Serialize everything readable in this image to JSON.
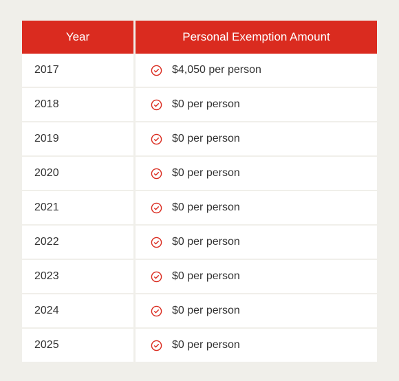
{
  "table": {
    "type": "table",
    "header_bg_color": "#da2b1f",
    "header_text_color": "#ffffff",
    "row_bg_color": "#ffffff",
    "page_bg_color": "#f0efea",
    "text_color": "#333333",
    "icon_color": "#da2b1f",
    "columns": [
      {
        "key": "year",
        "label": "Year",
        "width": 165,
        "align": "left"
      },
      {
        "key": "amount",
        "label": "Personal Exemption Amount",
        "align": "left"
      }
    ],
    "rows": [
      {
        "year": "2017",
        "amount": "$4,050 per person"
      },
      {
        "year": "2018",
        "amount": "$0 per person"
      },
      {
        "year": "2019",
        "amount": "$0 per person"
      },
      {
        "year": "2020",
        "amount": "$0 per person"
      },
      {
        "year": "2021",
        "amount": "$0 per person"
      },
      {
        "year": "2022",
        "amount": "$0 per person"
      },
      {
        "year": "2023",
        "amount": "$0 per person"
      },
      {
        "year": "2024",
        "amount": "$0 per person"
      },
      {
        "year": "2025",
        "amount": "$0 per person"
      }
    ],
    "header_fontsize": 17,
    "cell_fontsize": 16
  }
}
